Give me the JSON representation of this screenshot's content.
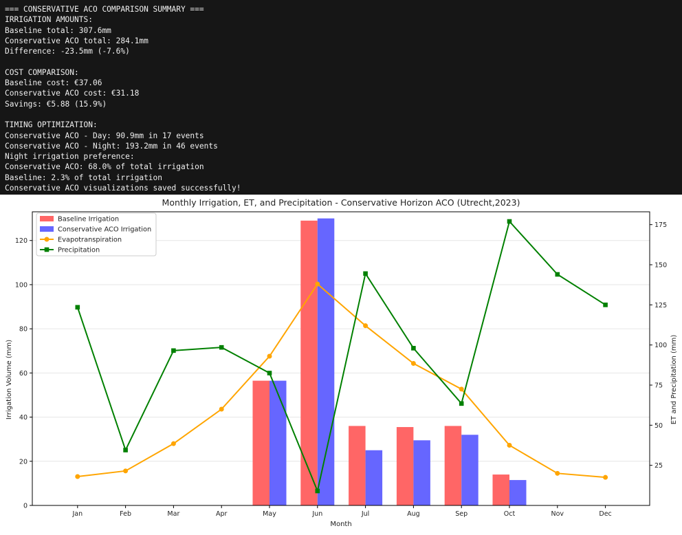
{
  "console": {
    "lines": [
      "=== CONSERVATIVE ACO COMPARISON SUMMARY ===",
      "IRRIGATION AMOUNTS:",
      "Baseline total: 307.6mm",
      "Conservative ACO total: 284.1mm",
      "Difference: -23.5mm (-7.6%)",
      "",
      "COST COMPARISON:",
      "Baseline cost: €37.06",
      "Conservative ACO cost: €31.18",
      "Savings: €5.88 (15.9%)",
      "",
      "TIMING OPTIMIZATION:",
      "Conservative ACO - Day: 90.9mm in 17 events",
      "Conservative ACO - Night: 193.2mm in 46 events",
      "Night irrigation preference:",
      "Conservative ACO: 68.0% of total irrigation",
      "Baseline: 2.3% of total irrigation",
      "Conservative ACO visualizations saved successfully!"
    ]
  },
  "chart_data": {
    "type": "bar",
    "title": "Monthly Irrigation, ET, and Precipitation - Conservative Horizon ACO (Utrecht,2023)",
    "xlabel": "Month",
    "ylabel": "Irrigation Volume (mm)",
    "y2label": "ET and Precipitation (mm)",
    "categories": [
      "Jan",
      "Feb",
      "Mar",
      "Apr",
      "May",
      "Jun",
      "Jul",
      "Aug",
      "Sep",
      "Oct",
      "Nov",
      "Dec"
    ],
    "ylim": [
      0,
      133
    ],
    "y2lim": [
      0,
      183
    ],
    "yticks": [
      0,
      20,
      40,
      60,
      80,
      100,
      120
    ],
    "y2ticks": [
      25,
      50,
      75,
      100,
      125,
      150,
      175
    ],
    "grid": true,
    "legend_position": "upper-left",
    "bar_series": [
      {
        "name": "Baseline Irrigation",
        "color": "#ff6666",
        "values": [
          0,
          0,
          0,
          0,
          56.5,
          129,
          36,
          35.5,
          36,
          14,
          0,
          0
        ]
      },
      {
        "name": "Conservative ACO Irrigation",
        "color": "#6666ff",
        "values": [
          0,
          0,
          0,
          0,
          56.5,
          130,
          25,
          29.5,
          32,
          11.5,
          0,
          0
        ]
      }
    ],
    "line_series": [
      {
        "name": "Evapotranspiration",
        "color": "#ffa500",
        "marker": "circle",
        "values": [
          18,
          21.5,
          38.5,
          60,
          93,
          138,
          112,
          88.5,
          72.5,
          37.5,
          20,
          17.5
        ]
      },
      {
        "name": "Precipitation",
        "color": "#008000",
        "marker": "square",
        "values": [
          123.5,
          34.5,
          96.5,
          98.5,
          82.5,
          9,
          144.5,
          98,
          63.5,
          177,
          144,
          125
        ]
      }
    ]
  }
}
